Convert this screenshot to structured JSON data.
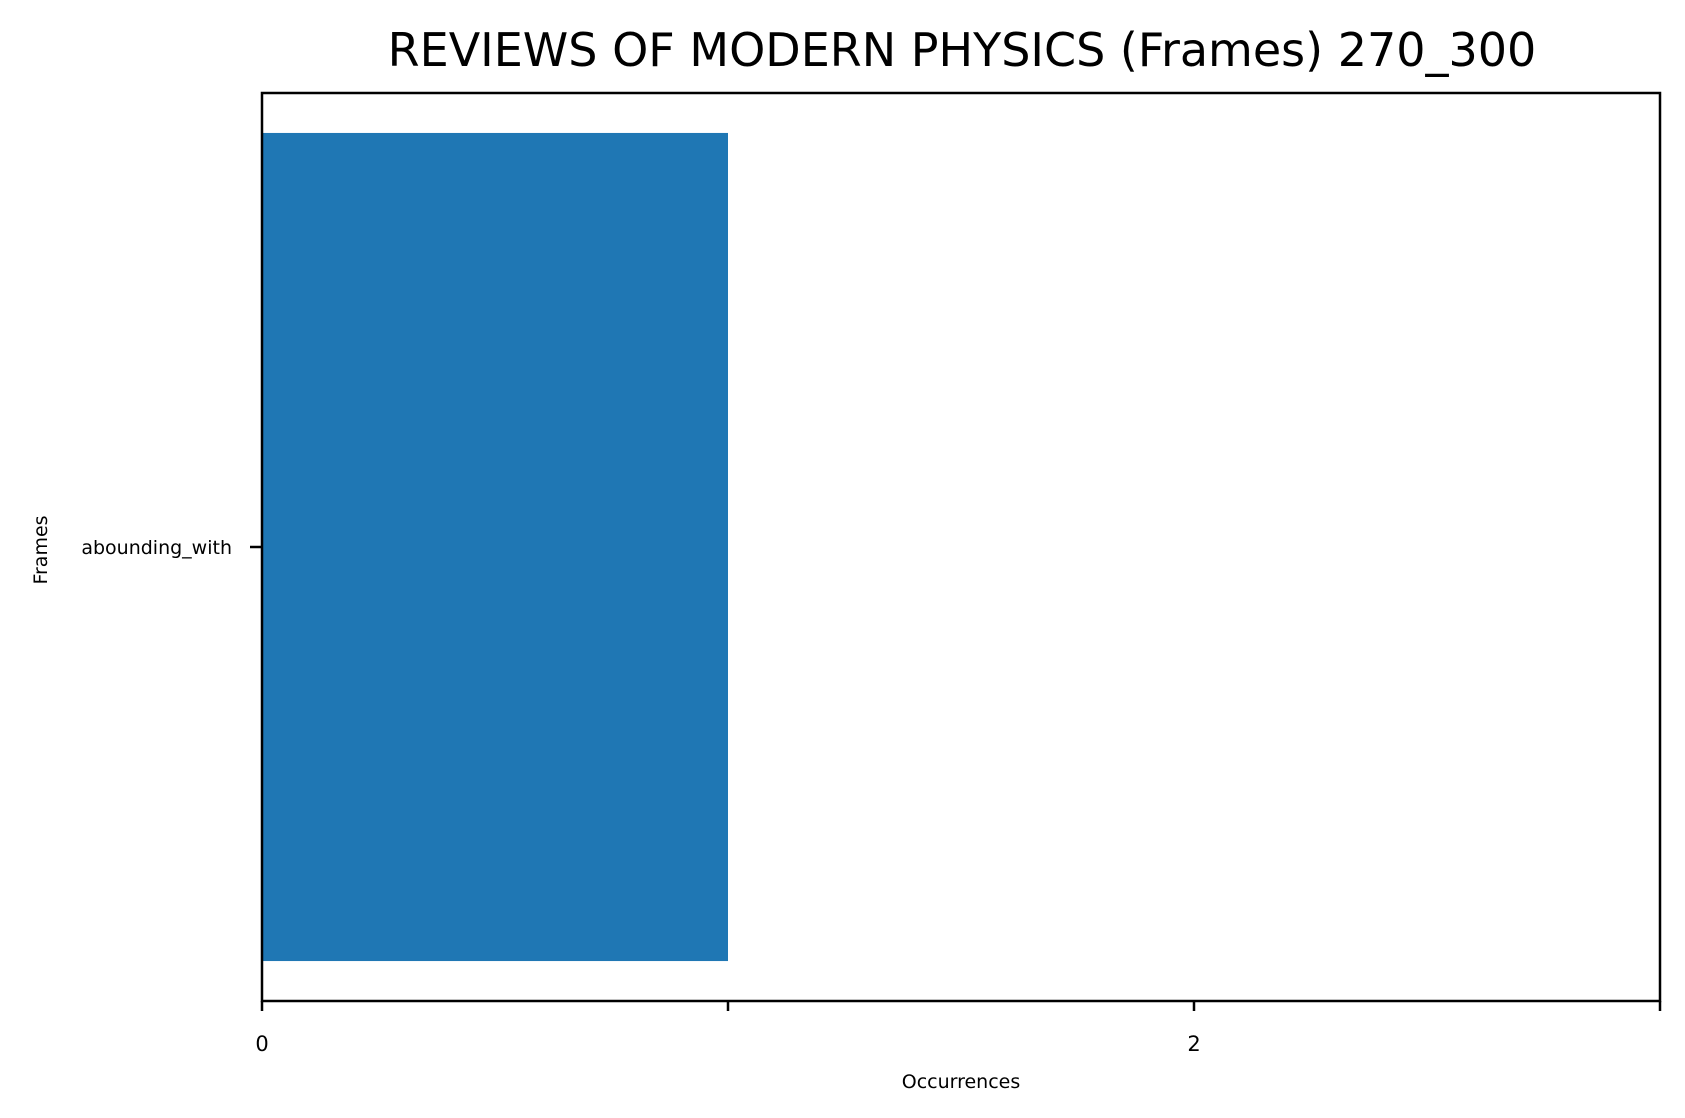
{
  "chart_data": {
    "type": "bar",
    "orientation": "horizontal",
    "title": "REVIEWS OF MODERN PHYSICS (Frames) 270_300",
    "xlabel": "Occurrences",
    "ylabel": "Frames",
    "categories": [
      "abounding_with"
    ],
    "values": [
      1
    ],
    "xlim": [
      0,
      3
    ],
    "xticks": [
      0,
      1,
      2,
      3
    ],
    "xtick_labels": [
      "0",
      "",
      "2",
      ""
    ],
    "grid": false,
    "bar_color": "#1f77b4"
  }
}
